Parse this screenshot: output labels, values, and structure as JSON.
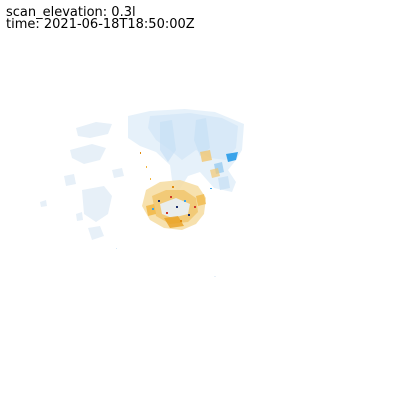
{
  "overlay": {
    "scan_elevation_text": "scan_elevation: 0.3l",
    "time_text": "time: 2021-06-18T18:50:00Z"
  },
  "colors": {
    "background": "#ffffff",
    "inbound_light": "#d6e9f8",
    "inbound_mid": "#a9d3f2",
    "inbound_strong": "#3aa3ea",
    "outbound_light": "#f6dca0",
    "outbound_mid": "#f0b43c",
    "outbound_strong": "#e08a10",
    "speckle_dark": "#1c2f6e",
    "speckle_red": "#d03a2a"
  }
}
